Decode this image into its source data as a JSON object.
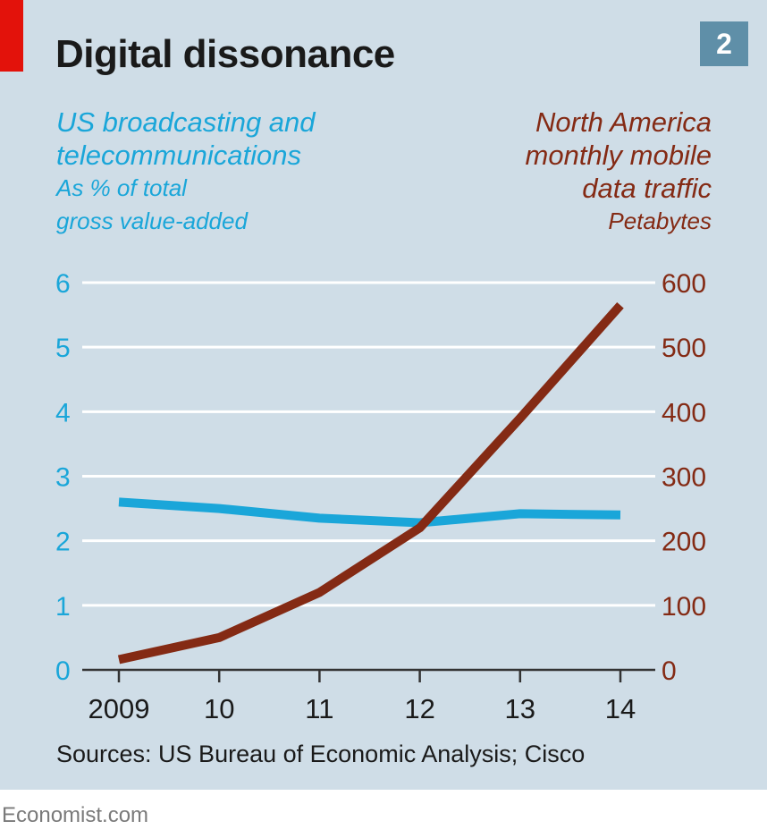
{
  "title": "Digital dissonance",
  "chart_number": "2",
  "source": "Sources: US Bureau of Economic Analysis; Cisco",
  "brand": "Economist.com",
  "colors": {
    "background": "#cfdde7",
    "accent_red": "#e3120b",
    "left_series": "#1aa6d9",
    "right_series": "#842a14",
    "grid": "#ffffff",
    "badge": "#5f8fa8"
  },
  "chart_data": {
    "type": "line",
    "title": "Digital dissonance",
    "x": [
      "2009",
      "10",
      "11",
      "12",
      "13",
      "14"
    ],
    "grid": true,
    "left_axis": {
      "ylim": [
        0,
        6
      ],
      "ticks": [
        "0",
        "1",
        "2",
        "3",
        "4",
        "5",
        "6"
      ]
    },
    "right_axis": {
      "ylim": [
        0,
        600
      ],
      "ticks": [
        "0",
        "100",
        "200",
        "300",
        "400",
        "500",
        "600"
      ]
    },
    "series": [
      {
        "name": "US broadcasting and telecommunications",
        "unit": "As % of total gross value-added",
        "name_lines": [
          "US broadcasting and",
          "telecommunications"
        ],
        "unit_lines": [
          "As % of total",
          "gross value-added"
        ],
        "axis": "left",
        "values": [
          2.6,
          2.5,
          2.35,
          2.28,
          2.42,
          2.4
        ]
      },
      {
        "name": "North America monthly mobile data traffic",
        "unit": "Petabytes",
        "name_lines": [
          "North America",
          "monthly mobile",
          "data traffic"
        ],
        "unit_lines": [
          "Petabytes"
        ],
        "axis": "right",
        "values": [
          16,
          50,
          120,
          220,
          390,
          565
        ]
      }
    ]
  }
}
